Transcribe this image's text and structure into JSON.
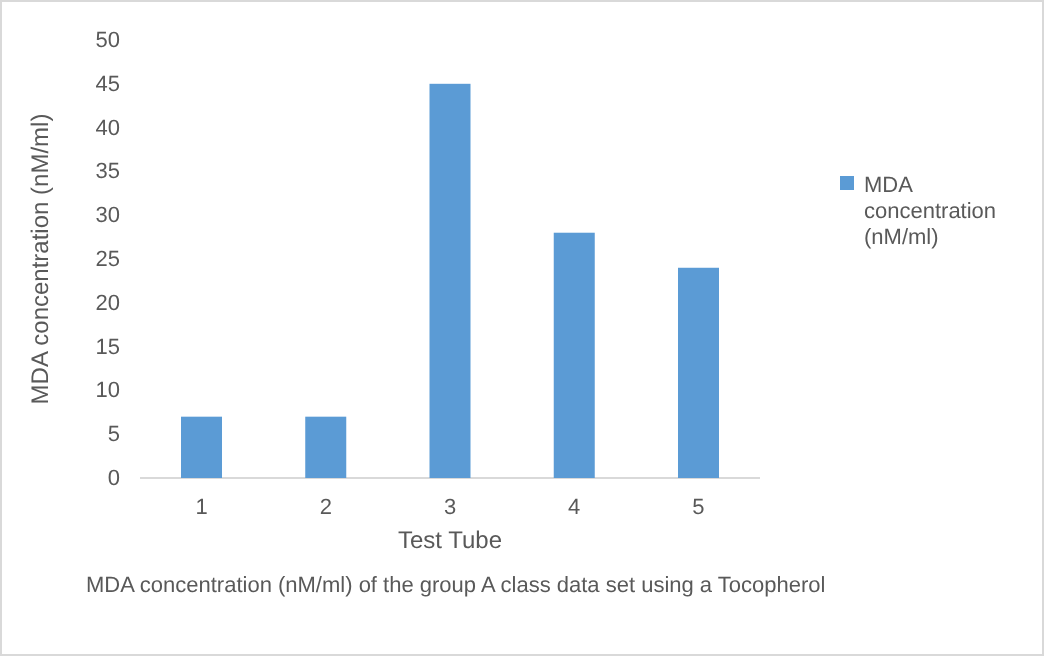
{
  "chart_data": {
    "type": "bar",
    "xlabel": "Test Tube",
    "ylabel": "MDA concentration (nM/ml)",
    "categories": [
      "1",
      "2",
      "3",
      "4",
      "5"
    ],
    "series": [
      {
        "name": "MDA concentration (nM/ml)",
        "color": "#5b9bd5",
        "values": [
          7,
          7,
          45,
          28,
          24
        ]
      }
    ],
    "ylim": [
      0,
      50
    ],
    "yticks": [
      0,
      5,
      10,
      15,
      20,
      25,
      30,
      35,
      40,
      45,
      50
    ],
    "grid": false,
    "legend": "right",
    "annotations": [
      "MDA concentration (nM/ml) of the group A class data set using a Tocopherol"
    ]
  }
}
